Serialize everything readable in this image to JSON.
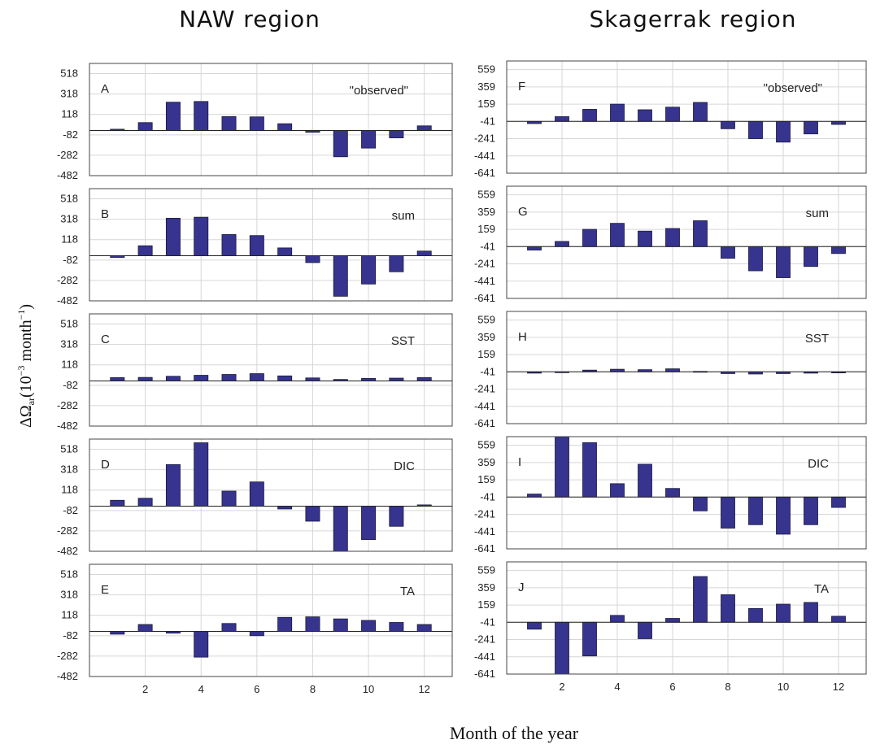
{
  "titles": {
    "left": "NAW region",
    "right": "Skagerrak region"
  },
  "axes": {
    "xlabel": "Month of the year"
  },
  "chart_data": [
    {
      "type": "bar",
      "panel": "A",
      "region": "NAW region",
      "label": "\"observed\"",
      "x": [
        1,
        2,
        3,
        4,
        5,
        6,
        7,
        8,
        9,
        10,
        11,
        12
      ],
      "values": [
        -27,
        38,
        238,
        245,
        97,
        94,
        27,
        -57,
        -297,
        -212,
        -112,
        6
      ],
      "yticks": [
        518,
        318,
        118,
        -82,
        -282,
        -482
      ],
      "ylim": [
        -482,
        618
      ]
    },
    {
      "type": "bar",
      "panel": "B",
      "region": "NAW region",
      "label": "sum",
      "x": [
        1,
        2,
        3,
        4,
        5,
        6,
        7,
        8,
        9,
        10,
        11,
        12
      ],
      "values": [
        -57,
        58,
        328,
        338,
        168,
        158,
        37,
        -107,
        -437,
        -317,
        -197,
        6
      ],
      "yticks": [
        518,
        318,
        118,
        -82,
        -282,
        -482
      ],
      "ylim": [
        -482,
        618
      ]
    },
    {
      "type": "bar",
      "panel": "C",
      "region": "NAW region",
      "label": "SST",
      "x": [
        1,
        2,
        3,
        4,
        5,
        6,
        7,
        8,
        9,
        10,
        11,
        12
      ],
      "values": [
        -7,
        -5,
        6,
        16,
        24,
        32,
        10,
        -10,
        -25,
        -15,
        -12,
        -6
      ],
      "yticks": [
        518,
        318,
        118,
        -82,
        -282,
        -482
      ],
      "ylim": [
        -482,
        618
      ]
    },
    {
      "type": "bar",
      "panel": "D",
      "region": "NAW region",
      "label": "DIC",
      "x": [
        1,
        2,
        3,
        4,
        5,
        6,
        7,
        8,
        9,
        10,
        11,
        12
      ],
      "values": [
        18,
        38,
        368,
        582,
        108,
        198,
        -67,
        -187,
        -492,
        -367,
        -237,
        -27
      ],
      "yticks": [
        518,
        318,
        118,
        -82,
        -282,
        -482
      ],
      "ylim": [
        -482,
        618
      ]
    },
    {
      "type": "bar",
      "panel": "E",
      "region": "NAW region",
      "label": "TA",
      "x": [
        1,
        2,
        3,
        4,
        5,
        6,
        7,
        8,
        9,
        10,
        11,
        12
      ],
      "values": [
        -67,
        28,
        -57,
        -292,
        38,
        -82,
        98,
        103,
        83,
        68,
        48,
        28
      ],
      "yticks": [
        518,
        318,
        118,
        -82,
        -282,
        -482
      ],
      "ylim": [
        -482,
        618
      ]
    },
    {
      "type": "bar",
      "panel": "F",
      "region": "Skagerrak region",
      "label": "\"observed\"",
      "x": [
        1,
        2,
        3,
        4,
        5,
        6,
        7,
        8,
        9,
        10,
        11,
        12
      ],
      "values": [
        -66,
        14,
        99,
        159,
        94,
        124,
        179,
        -126,
        -241,
        -281,
        -186,
        -76
      ],
      "yticks": [
        559,
        359,
        159,
        -41,
        -241,
        -441,
        -641
      ],
      "ylim": [
        -641,
        659
      ]
    },
    {
      "type": "bar",
      "panel": "G",
      "region": "Skagerrak region",
      "label": "sum",
      "x": [
        1,
        2,
        3,
        4,
        5,
        6,
        7,
        8,
        9,
        10,
        11,
        12
      ],
      "values": [
        -81,
        19,
        159,
        229,
        139,
        169,
        259,
        -176,
        -321,
        -401,
        -271,
        -121
      ],
      "yticks": [
        559,
        359,
        159,
        -41,
        -241,
        -441,
        -641
      ],
      "ylim": [
        -641,
        659
      ]
    },
    {
      "type": "bar",
      "panel": "H",
      "region": "Skagerrak region",
      "label": "SST",
      "x": [
        1,
        2,
        3,
        4,
        5,
        6,
        7,
        8,
        9,
        10,
        11,
        12
      ],
      "values": [
        -56,
        -49,
        -21,
        -11,
        -16,
        -6,
        -36,
        -61,
        -66,
        -61,
        -56,
        -53
      ],
      "yticks": [
        559,
        359,
        159,
        -41,
        -241,
        -441,
        -641
      ],
      "ylim": [
        -641,
        659
      ]
    },
    {
      "type": "bar",
      "panel": "I",
      "region": "Skagerrak region",
      "label": "DIC",
      "x": [
        1,
        2,
        3,
        4,
        5,
        6,
        7,
        8,
        9,
        10,
        11,
        12
      ],
      "values": [
        -6,
        659,
        589,
        114,
        339,
        59,
        -201,
        -401,
        -361,
        -471,
        -361,
        -161
      ],
      "yticks": [
        559,
        359,
        159,
        -41,
        -241,
        -441,
        -641
      ],
      "ylim": [
        -641,
        659
      ]
    },
    {
      "type": "bar",
      "panel": "J",
      "region": "Skagerrak region",
      "label": "TA",
      "x": [
        1,
        2,
        3,
        4,
        5,
        6,
        7,
        8,
        9,
        10,
        11,
        12
      ],
      "values": [
        -121,
        -641,
        -431,
        39,
        -231,
        4,
        489,
        279,
        119,
        169,
        189,
        29
      ],
      "yticks": [
        559,
        359,
        159,
        -41,
        -241,
        -441,
        -641
      ],
      "ylim": [
        -641,
        659
      ]
    }
  ],
  "xticks": [
    2,
    4,
    6,
    8,
    10,
    12
  ]
}
